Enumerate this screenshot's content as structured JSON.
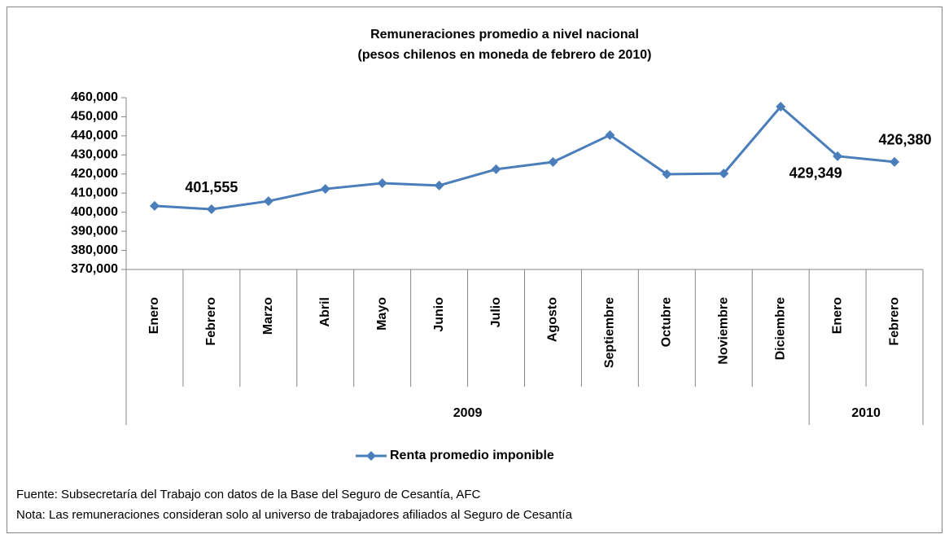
{
  "chart_data": {
    "type": "line",
    "title": "Remuneraciones promedio a nivel nacional",
    "subtitle": "(pesos chilenos en moneda de febrero de 2010)",
    "categories": [
      "Enero",
      "Febrero",
      "Marzo",
      "Abril",
      "Mayo",
      "Junio",
      "Julio",
      "Agosto",
      "Septiembre",
      "Octubre",
      "Noviembre",
      "Diciembre",
      "Enero",
      "Febrero"
    ],
    "groups": [
      {
        "label": "2009",
        "count": 12
      },
      {
        "label": "2010",
        "count": 2
      }
    ],
    "series": [
      {
        "name": "Renta promedio imponible",
        "color": "#4a7ebb",
        "values": [
          403300,
          401555,
          405800,
          412200,
          415200,
          414000,
          422500,
          426300,
          440400,
          419900,
          420300,
          455300,
          429349,
          426380
        ],
        "value_labels": [
          null,
          "401,555",
          null,
          null,
          null,
          null,
          null,
          null,
          null,
          null,
          null,
          null,
          "429,349",
          "426,380"
        ]
      }
    ],
    "ylim": [
      370000,
      460000
    ],
    "yticks": [
      {
        "value": 370000,
        "label": "370,000"
      },
      {
        "value": 380000,
        "label": "380,000"
      },
      {
        "value": 390000,
        "label": "390,000"
      },
      {
        "value": 400000,
        "label": "400,000"
      },
      {
        "value": 410000,
        "label": "410,000"
      },
      {
        "value": 420000,
        "label": "420,000"
      },
      {
        "value": 430000,
        "label": "430,000"
      },
      {
        "value": 440000,
        "label": "440,000"
      },
      {
        "value": 450000,
        "label": "450,000"
      },
      {
        "value": 460000,
        "label": "460,000"
      }
    ],
    "grid": false,
    "legend": "bottom",
    "footnotes": [
      "Fuente: Subsecretaría del Trabajo con datos de la Base del Seguro de Cesantía, AFC",
      "Nota: Las remuneraciones consideran solo al universo de trabajadores afiliados al Seguro de Cesantía"
    ]
  }
}
